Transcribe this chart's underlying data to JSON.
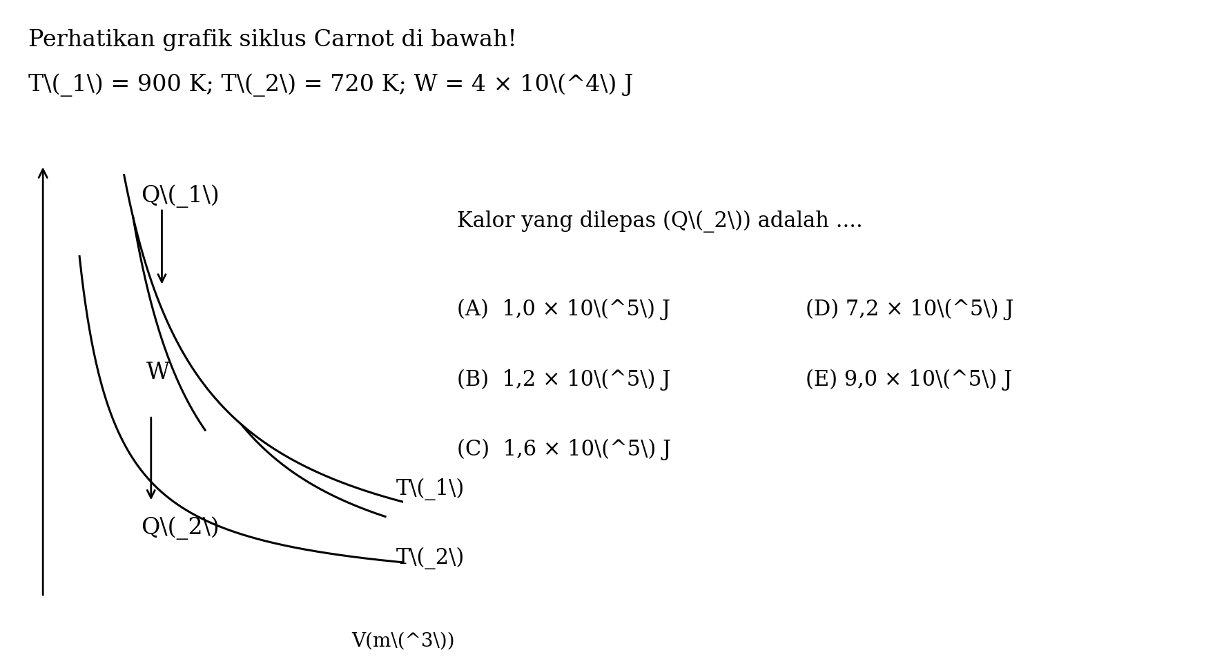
{
  "title_line1": "Perhatikan grafik siklus Carnot di bawah!",
  "title_line2": "T\\(_1\\) = 900 K; T\\(_2\\) = 720 K; W = 4 × 10\\(^4\\) J",
  "diagram_label_Q1": "Q\\(_1\\)",
  "diagram_label_W": "W",
  "diagram_label_Q2": "Q\\(_2\\)",
  "diagram_label_T1": "T\\(_1\\)",
  "diagram_label_T2": "T\\(_2\\)",
  "xlabel": "V(m\\(^3\\))",
  "question": "Kalor yang dilepas (Q\\(_2\\)) adalah ....",
  "opt_A": "(A)  1,0 × 10\\(^5\\) J",
  "opt_B": "(B)  1,2 × 10\\(^5\\) J",
  "opt_C": "(C)  1,6 × 10\\(^5\\) J",
  "opt_D": "(D) 7,2 × 10\\(^5\\) J",
  "opt_E": "(E) 9,0 × 10\\(^5\\) J",
  "bg_color": "#ffffff",
  "text_color": "#000000",
  "line_color": "#000000",
  "font_size_title": 24,
  "font_size_diagram": 22,
  "font_size_options": 22
}
